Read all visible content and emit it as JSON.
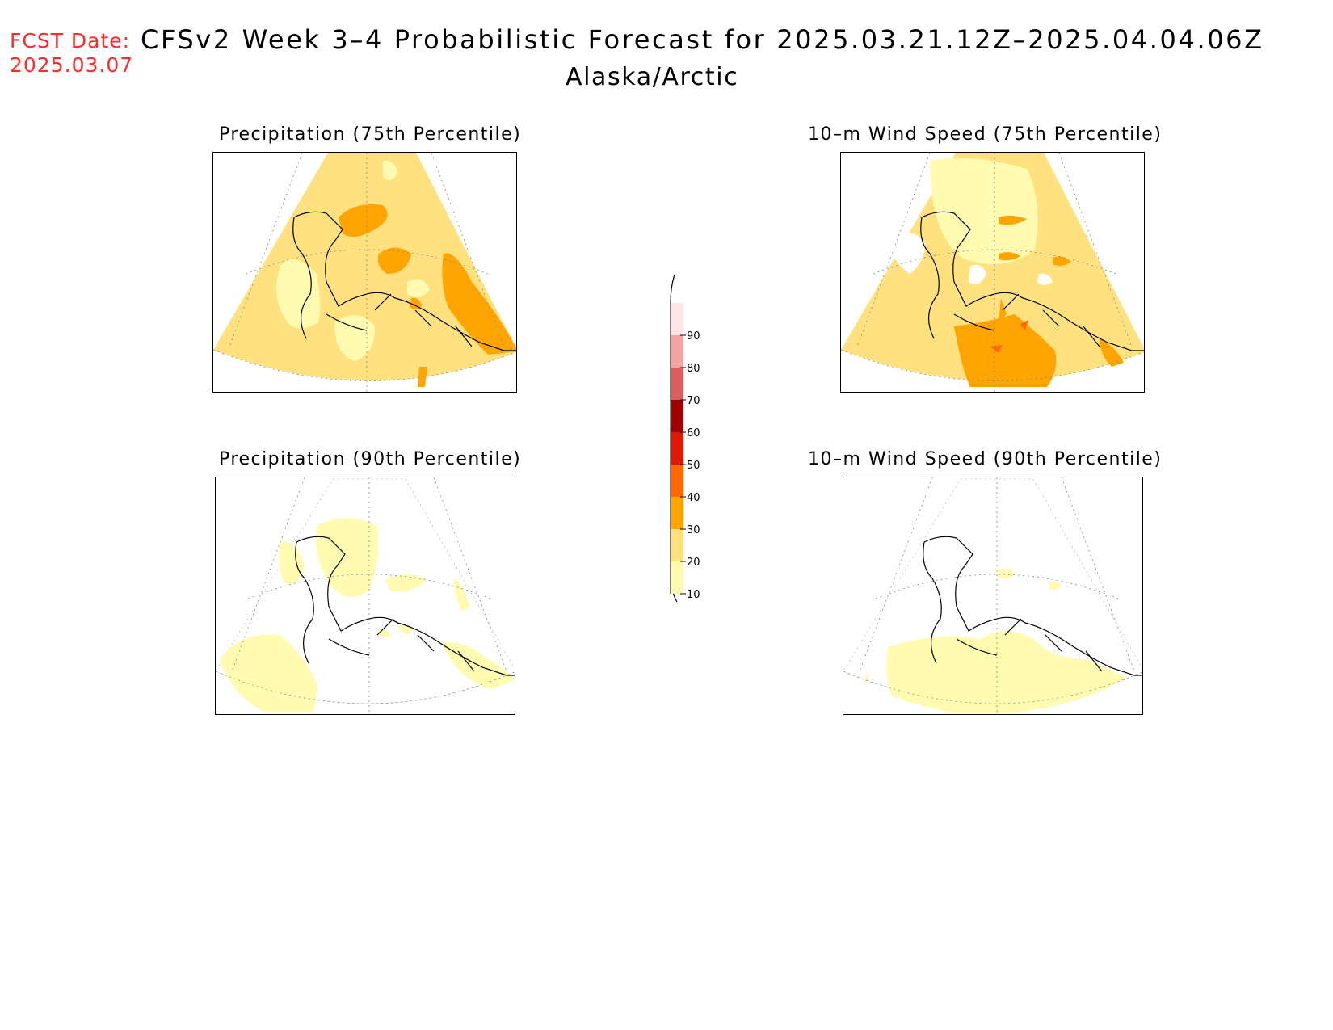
{
  "header": {
    "fcst_label": "FCST Date:",
    "fcst_date": "2025.03.07",
    "title": "CFSv2 Week 3–4 Probabilistic Forecast for 2025.03.21.12Z–2025.04.04.06Z",
    "region": "Alaska/Arctic"
  },
  "panels": [
    {
      "title": "Precipitation (75th Percentile)"
    },
    {
      "title": "10–m Wind Speed (75th Percentile)"
    },
    {
      "title": "Precipitation (90th Percentile)"
    },
    {
      "title": "10–m Wind Speed (90th Percentile)"
    }
  ],
  "colorbar": {
    "labels": [
      "90",
      "80",
      "70",
      "60",
      "50",
      "40",
      "30",
      "20",
      "10"
    ],
    "colors": [
      "#ffe6e6",
      "#f3a3a3",
      "#d9605f",
      "#9e0000",
      "#dd1a00",
      "#ff6a00",
      "#ffa400",
      "#ffe27f",
      "#fffbb0"
    ]
  },
  "legend_classes": {
    "c10": "#fffbb0",
    "c20": "#ffe27f",
    "c30": "#ffa400",
    "c40": "#ff6a00"
  }
}
